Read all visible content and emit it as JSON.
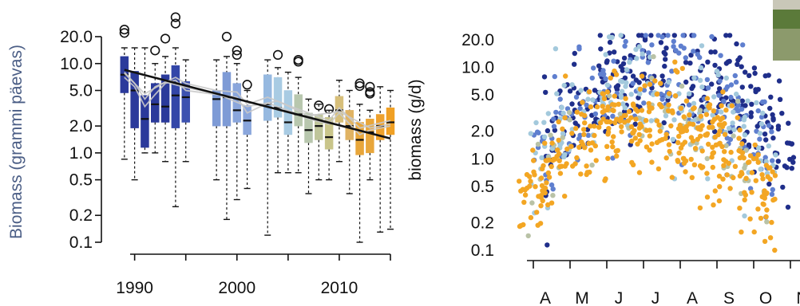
{
  "chart_data": [
    {
      "type": "box",
      "scale": "log",
      "ylabel": "Biomass (grammi päevas)",
      "ylabel_color": "#4a5d85",
      "ylim": [
        0.1,
        20
      ],
      "yticks": [
        0.1,
        0.2,
        0.5,
        1.0,
        2.0,
        5.0,
        10.0,
        20.0
      ],
      "ytick_labels": [
        "0.1",
        "0.2",
        "0.5",
        "1.0",
        "2.0",
        "5.0",
        "10.0",
        "20.0"
      ],
      "xlim": [
        1988,
        2015
      ],
      "xticks": [
        1990,
        2000,
        2010
      ],
      "xtick_labels": [
        "1990",
        "2000",
        "2010"
      ],
      "boxes": [
        {
          "year": 1989,
          "q1": 4.7,
          "median": 7.5,
          "q3": 12.0,
          "wlo": 0.85,
          "whi": 15.0,
          "out": [
            22,
            24
          ],
          "color": "#2b3a9b"
        },
        {
          "year": 1990,
          "q1": 1.9,
          "median": 5.0,
          "q3": 8.2,
          "wlo": 0.5,
          "whi": 15.0,
          "out": [],
          "color": "#2b3a9b"
        },
        {
          "year": 1991,
          "q1": 1.15,
          "median": 2.4,
          "q3": 4.4,
          "wlo": 1.0,
          "whi": 15.0,
          "out": [],
          "color": "#2b3a9b"
        },
        {
          "year": 1992,
          "q1": 2.2,
          "median": 3.5,
          "q3": 6.0,
          "wlo": 1.0,
          "whi": 10.0,
          "out": [
            14
          ],
          "color": "#2b3a9b"
        },
        {
          "year": 1993,
          "q1": 2.2,
          "median": 3.3,
          "q3": 7.5,
          "wlo": 0.8,
          "whi": 12.0,
          "out": [
            19
          ],
          "color": "#2b3a9b"
        },
        {
          "year": 1994,
          "q1": 1.9,
          "median": 4.4,
          "q3": 9.5,
          "wlo": 0.25,
          "whi": 15.0,
          "out": [
            28,
            33
          ],
          "color": "#3346a8"
        },
        {
          "year": 1995,
          "q1": 2.2,
          "median": 4.2,
          "q3": 6.3,
          "wlo": 0.8,
          "whi": 11.0,
          "out": [],
          "color": "#3d52b0"
        },
        {
          "year": 1998,
          "q1": 2.0,
          "median": 4.0,
          "q3": 5.0,
          "wlo": 0.5,
          "whi": 11.0,
          "out": [],
          "color": "#7e9bd6"
        },
        {
          "year": 1999,
          "q1": 2.0,
          "median": 4.2,
          "q3": 8.0,
          "wlo": 0.18,
          "whi": 12.0,
          "out": [
            20
          ],
          "color": "#7e9bd6"
        },
        {
          "year": 2000,
          "q1": 2.2,
          "median": 3.0,
          "q3": 6.0,
          "wlo": 0.3,
          "whi": 10.0,
          "out": [
            12.5,
            14
          ],
          "color": "#8aa6dc"
        },
        {
          "year": 2001,
          "q1": 1.6,
          "median": 2.3,
          "q3": 3.4,
          "wlo": 0.4,
          "whi": 5.0,
          "out": [
            5.8
          ],
          "color": "#8aa6dc"
        },
        {
          "year": 2003,
          "q1": 2.3,
          "median": 3.5,
          "q3": 7.5,
          "wlo": 0.12,
          "whi": 11.0,
          "out": [],
          "color": "#96b9e0"
        },
        {
          "year": 2004,
          "q1": 2.5,
          "median": 3.2,
          "q3": 7.0,
          "wlo": 0.6,
          "whi": 9.0,
          "out": [
            12.5
          ],
          "color": "#a8cbe3"
        },
        {
          "year": 2005,
          "q1": 1.6,
          "median": 2.2,
          "q3": 5.0,
          "wlo": 0.6,
          "whi": 8.0,
          "out": [],
          "color": "#a8cbe3"
        },
        {
          "year": 2006,
          "q1": 2.0,
          "median": 2.7,
          "q3": 4.5,
          "wlo": 0.6,
          "whi": 7.0,
          "out": [
            10.5,
            11.0
          ],
          "color": "#b8c7ae"
        },
        {
          "year": 2007,
          "q1": 1.3,
          "median": 1.8,
          "q3": 2.8,
          "wlo": 0.35,
          "whi": 4.0,
          "out": [],
          "color": "#b8c7ae"
        },
        {
          "year": 2008,
          "q1": 1.4,
          "median": 2.0,
          "q3": 2.7,
          "wlo": 0.5,
          "whi": 3.5,
          "out": [
            3.4
          ],
          "color": "#bfc59a"
        },
        {
          "year": 2009,
          "q1": 1.1,
          "median": 1.5,
          "q3": 2.5,
          "wlo": 0.5,
          "whi": 3.0,
          "out": [
            3.1
          ],
          "color": "#c9c58a"
        },
        {
          "year": 2010,
          "q1": 2.2,
          "median": 3.0,
          "q3": 4.3,
          "wlo": 0.8,
          "whi": 6.5,
          "out": [],
          "color": "#d7bf7a"
        },
        {
          "year": 2011,
          "q1": 1.4,
          "median": 2.0,
          "q3": 3.0,
          "wlo": 0.35,
          "whi": 5.0,
          "out": [],
          "color": "#e0b363"
        },
        {
          "year": 2012,
          "q1": 0.95,
          "median": 1.4,
          "q3": 2.2,
          "wlo": 0.1,
          "whi": 3.5,
          "out": [
            6.0,
            5.6
          ],
          "color": "#e8a63a"
        },
        {
          "year": 2013,
          "q1": 1.0,
          "median": 1.7,
          "q3": 2.4,
          "wlo": 0.5,
          "whi": 3.0,
          "out": [
            5.5,
            4.8,
            4.6
          ],
          "color": "#e8a63a"
        },
        {
          "year": 2014,
          "q1": 1.4,
          "median": 2.0,
          "q3": 2.7,
          "wlo": 0.13,
          "whi": 5.5,
          "out": [],
          "color": "#eea12d"
        },
        {
          "year": 2015,
          "q1": 1.6,
          "median": 2.2,
          "q3": 3.2,
          "wlo": 0.14,
          "whi": 5.0,
          "out": [],
          "color": "#f0a024"
        }
      ],
      "trend_line": {
        "x": [
          1989,
          2015
        ],
        "y": [
          8.5,
          1.45
        ],
        "color": "#111111"
      },
      "smooth_lines": [
        {
          "x": [
            1989,
            1990,
            1991,
            1992,
            1993,
            1994,
            1995,
            1998,
            2000,
            2001,
            2003,
            2005,
            2007,
            2009,
            2010,
            2012,
            2013,
            2015
          ],
          "y": [
            7.0,
            5.5,
            3.3,
            4.5,
            6.0,
            6.5,
            5.0,
            4.5,
            4.2,
            2.8,
            3.6,
            3.0,
            2.4,
            2.1,
            2.8,
            1.6,
            1.8,
            2.0
          ]
        },
        {
          "x": [
            1989,
            1990,
            1991,
            1992,
            1994,
            1995,
            1998,
            2000,
            2001,
            2003,
            2005,
            2007,
            2009,
            2010,
            2012,
            2015
          ],
          "y": [
            8.0,
            6.0,
            4.0,
            5.5,
            7.0,
            6.0,
            5.0,
            4.8,
            3.5,
            4.2,
            3.4,
            2.8,
            2.3,
            3.2,
            1.9,
            2.3
          ]
        },
        {
          "x": [
            1989,
            1991,
            1993,
            1995,
            1998,
            2001,
            2004,
            2007,
            2010,
            2013,
            2015
          ],
          "y": [
            7.8,
            4.6,
            6.2,
            5.4,
            4.6,
            3.3,
            3.8,
            2.6,
            2.9,
            1.9,
            2.1
          ]
        }
      ]
    },
    {
      "type": "scatter",
      "scale": "log",
      "ylabel": "biomass (g/d)",
      "ylim": [
        0.1,
        20
      ],
      "yticks": [
        0.1,
        0.2,
        0.5,
        1.0,
        2.0,
        5.0,
        10.0,
        20.0
      ],
      "ytick_labels": [
        "0.1",
        "0.2",
        "0.5",
        "1.0",
        "2.0",
        "5.0",
        "10.0",
        "20.0"
      ],
      "xticks": [
        "A",
        "M",
        "J",
        "J",
        "A",
        "S",
        "O",
        "N"
      ],
      "series_colors": [
        "#1f2e8a",
        "#5f7fcf",
        "#a3c9dc",
        "#b9c2a6",
        "#f3a623"
      ],
      "series": [
        {
          "name": "",
          "color": "#1f2e8a",
          "x_start": 0.3,
          "x_end": 7.1,
          "log_peak": 0.97,
          "log_width": 0.55,
          "n": 280
        },
        {
          "name": "",
          "color": "#5f7fcf",
          "x_start": 0.0,
          "x_end": 6.7,
          "log_peak": 0.85,
          "log_width": 0.55,
          "n": 170
        },
        {
          "name": "",
          "color": "#a3c9dc",
          "x_start": -0.1,
          "x_end": 6.6,
          "log_peak": 0.75,
          "log_width": 0.6,
          "n": 150
        },
        {
          "name": "",
          "color": "#b9c2a6",
          "x_start": -0.15,
          "x_end": 6.5,
          "log_peak": 0.5,
          "log_width": 0.45,
          "n": 60
        },
        {
          "name": "",
          "color": "#f3a623",
          "x_start": -0.4,
          "x_end": 6.6,
          "log_peak": 0.4,
          "log_width": 0.5,
          "n": 380
        }
      ]
    }
  ],
  "photo": {
    "colors": [
      "#5b7a3a",
      "#8c9a6c",
      "#c9c7b8"
    ]
  }
}
